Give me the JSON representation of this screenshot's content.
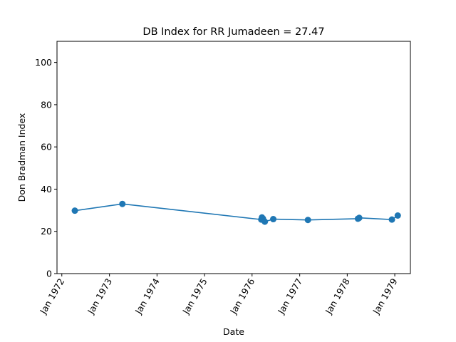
{
  "chart_data": {
    "type": "line",
    "title": "DB Index for RR Jumadeen = 27.47",
    "xlabel": "Date",
    "ylabel": "Don Bradman Index",
    "xlim": [
      "1971-11-25",
      "1979-05-01"
    ],
    "ylim": [
      0,
      110
    ],
    "x_ticks": [
      "1972-01-01",
      "1973-01-01",
      "1974-01-01",
      "1975-01-01",
      "1976-01-01",
      "1977-01-01",
      "1978-01-01",
      "1979-01-01"
    ],
    "x_tick_labels": [
      "Jan 1972",
      "Jan 1973",
      "Jan 1974",
      "Jan 1975",
      "Jan 1976",
      "Jan 1977",
      "Jan 1978",
      "Jan 1979"
    ],
    "y_ticks": [
      0,
      20,
      40,
      60,
      80,
      100
    ],
    "y_tick_labels": [
      "0",
      "20",
      "40",
      "60",
      "80",
      "100"
    ],
    "grid": false,
    "series": [
      {
        "color": "#1f77b4",
        "marker": "circle",
        "points": [
          {
            "x": "1972-04-10",
            "y": 29.8
          },
          {
            "x": "1973-04-10",
            "y": 33.0
          },
          {
            "x": "1976-03-12",
            "y": 25.6
          },
          {
            "x": "1976-03-17",
            "y": 26.6
          },
          {
            "x": "1976-03-25",
            "y": 26.0
          },
          {
            "x": "1976-04-08",
            "y": 24.6
          },
          {
            "x": "1976-06-12",
            "y": 25.8
          },
          {
            "x": "1977-03-05",
            "y": 25.4
          },
          {
            "x": "1978-03-24",
            "y": 26.0
          },
          {
            "x": "1978-04-03",
            "y": 26.4
          },
          {
            "x": "1978-12-10",
            "y": 25.6
          },
          {
            "x": "1979-01-24",
            "y": 27.5
          }
        ]
      }
    ]
  }
}
